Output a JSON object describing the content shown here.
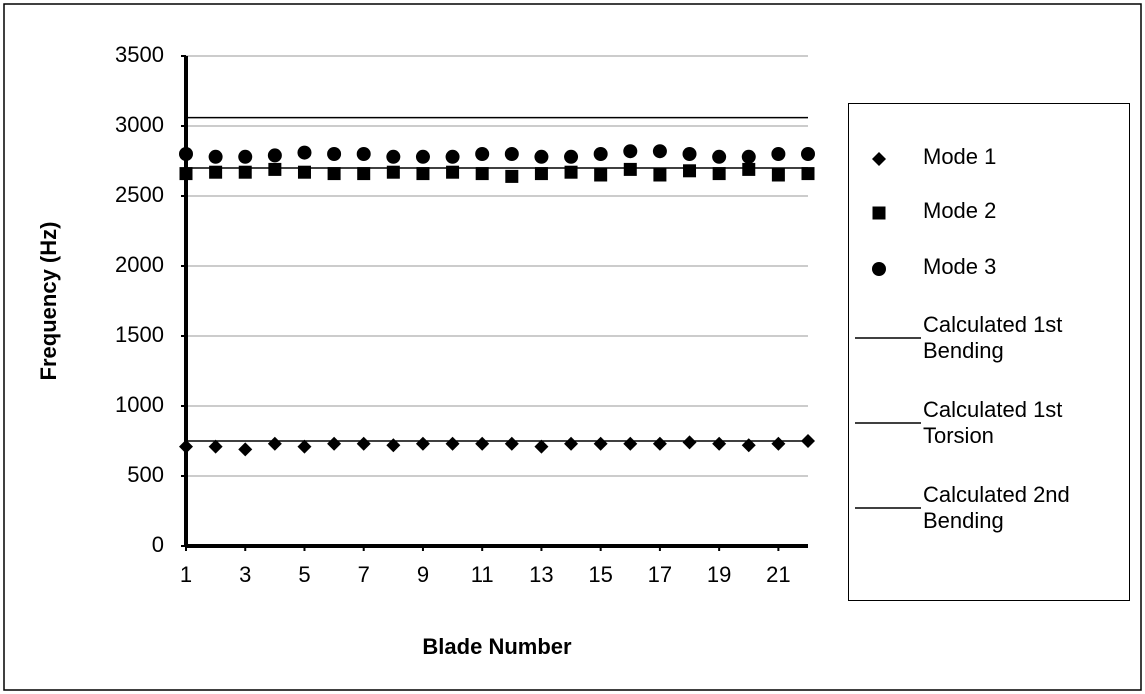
{
  "chart_data": {
    "type": "scatter",
    "x_label": "Blade Number",
    "y_label": "Frequency (Hz)",
    "x": [
      1,
      2,
      3,
      4,
      5,
      6,
      7,
      8,
      9,
      10,
      11,
      12,
      13,
      14,
      15,
      16,
      17,
      18,
      19,
      20,
      21,
      22
    ],
    "xlim": [
      1,
      22
    ],
    "xticks": [
      1,
      3,
      5,
      7,
      9,
      11,
      13,
      15,
      17,
      19,
      21
    ],
    "ylim": [
      0,
      3500
    ],
    "yticks": [
      0,
      500,
      1000,
      1500,
      2000,
      2500,
      3000,
      3500
    ],
    "grid": true,
    "series": [
      {
        "name": "Mode 1",
        "color": "#000000",
        "marker": "diamond",
        "values": [
          710,
          710,
          690,
          730,
          710,
          730,
          730,
          720,
          730,
          730,
          730,
          730,
          710,
          730,
          730,
          730,
          730,
          740,
          730,
          720,
          730,
          750
        ]
      },
      {
        "name": "Mode 2",
        "color": "#000000",
        "marker": "square",
        "values": [
          2660,
          2670,
          2670,
          2690,
          2670,
          2660,
          2660,
          2670,
          2660,
          2670,
          2660,
          2640,
          2660,
          2670,
          2650,
          2690,
          2650,
          2680,
          2660,
          2690,
          2650,
          2660
        ]
      },
      {
        "name": "Mode 3",
        "color": "#000000",
        "marker": "circle",
        "values": [
          2800,
          2780,
          2780,
          2790,
          2810,
          2800,
          2800,
          2780,
          2780,
          2780,
          2800,
          2800,
          2780,
          2780,
          2800,
          2820,
          2820,
          2800,
          2780,
          2780,
          2800,
          2800
        ]
      }
    ],
    "reference_lines": [
      {
        "name": "Calculated 1st Bending",
        "color": "#000000",
        "value": 750
      },
      {
        "name": "Calculated 1st Torsion",
        "color": "#000000",
        "value": 2700
      },
      {
        "name": "Calculated 2nd Bending",
        "color": "#000000",
        "value": 3060
      }
    ]
  }
}
